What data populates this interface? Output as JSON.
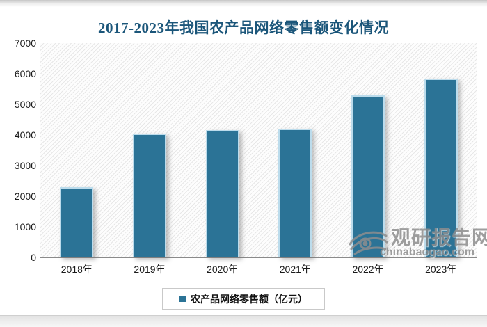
{
  "header": {
    "title": "2017-2023年我国农产品网络零售额变化情况",
    "title_color": "#1b567a"
  },
  "chart_data": {
    "type": "bar",
    "title": "2017-2023年我国农产品网络零售额变化情况",
    "categories": [
      "2018年",
      "2019年",
      "2020年",
      "2021年",
      "2022年",
      "2023年"
    ],
    "series": [
      {
        "name": "农产品网络零售额（亿元）",
        "values": [
          2300,
          4050,
          4150,
          4200,
          5300,
          5850
        ]
      }
    ],
    "xlabel": "",
    "ylabel": "",
    "ylim": [
      0,
      7000
    ],
    "yticks": [
      0,
      1000,
      2000,
      3000,
      4000,
      5000,
      6000,
      7000
    ],
    "grid": false,
    "legend_position": "bottom",
    "bar_color": "#2b7396",
    "bar_edge_color": "#bcdcec",
    "plot_background": "diagonal-hatch"
  },
  "legend": {
    "label": "农产品网络零售额（亿元）",
    "marker_color": "#2b7396"
  },
  "watermark": {
    "name": "观研报告网",
    "domain": "chinabaogao.com"
  }
}
